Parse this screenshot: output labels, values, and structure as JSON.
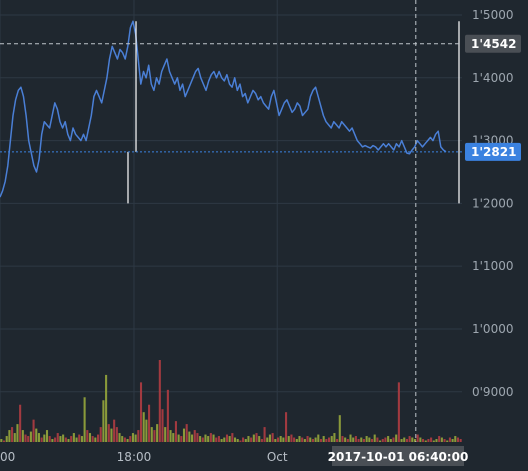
{
  "chart_data": {
    "type": "line",
    "y_unit": "price",
    "ylim": [
      0.82,
      1.5
    ],
    "y_ticks": [
      {
        "value": 1.5,
        "label": "1'5000"
      },
      {
        "value": 1.4,
        "label": "1'4000"
      },
      {
        "value": 1.3,
        "label": "1'3000"
      },
      {
        "value": 1.2,
        "label": "1'2000"
      },
      {
        "value": 1.1,
        "label": "1'1000"
      },
      {
        "value": 1.0,
        "label": "1'0000"
      },
      {
        "value": 0.9,
        "label": "0'9000"
      }
    ],
    "x_ticks": [
      {
        "pos": 0.0,
        "label": "00"
      },
      {
        "pos": 0.29,
        "label": "18:00"
      },
      {
        "pos": 0.6,
        "label": "Oct"
      }
    ],
    "crosshair": {
      "x_label": "2017-10-01 06:40:00",
      "x_pos": 0.9,
      "y_value": 1.4542,
      "y_label": "1'4542"
    },
    "last_price": {
      "value": 1.2821,
      "label": "1'2821"
    },
    "grid": true,
    "colors": {
      "line": "#4a7fd6",
      "last_tag": "#3b82e0",
      "crosshair_tag": "#4a4f55",
      "volume_up": "#8a9a3a",
      "volume_down": "#a23a40"
    },
    "series": [
      {
        "values": [
          1.21,
          1.22,
          1.235,
          1.26,
          1.3,
          1.34,
          1.365,
          1.38,
          1.385,
          1.37,
          1.34,
          1.3,
          1.28,
          1.26,
          1.25,
          1.27,
          1.31,
          1.33,
          1.325,
          1.32,
          1.34,
          1.36,
          1.35,
          1.33,
          1.32,
          1.33,
          1.31,
          1.3,
          1.32,
          1.31,
          1.305,
          1.3,
          1.31,
          1.3,
          1.32,
          1.34,
          1.37,
          1.38,
          1.37,
          1.36,
          1.38,
          1.4,
          1.43,
          1.45,
          1.44,
          1.43,
          1.445,
          1.44,
          1.43,
          1.45,
          1.48,
          1.49,
          1.47,
          1.43,
          1.39,
          1.41,
          1.4,
          1.42,
          1.39,
          1.38,
          1.4,
          1.39,
          1.41,
          1.42,
          1.43,
          1.41,
          1.4,
          1.39,
          1.4,
          1.38,
          1.39,
          1.37,
          1.38,
          1.39,
          1.4,
          1.41,
          1.415,
          1.4,
          1.39,
          1.38,
          1.395,
          1.405,
          1.41,
          1.4,
          1.41,
          1.4,
          1.395,
          1.405,
          1.39,
          1.385,
          1.4,
          1.38,
          1.39,
          1.37,
          1.375,
          1.36,
          1.37,
          1.38,
          1.375,
          1.365,
          1.37,
          1.36,
          1.355,
          1.35,
          1.37,
          1.38,
          1.36,
          1.34,
          1.35,
          1.36,
          1.365,
          1.355,
          1.345,
          1.35,
          1.36,
          1.355,
          1.34,
          1.345,
          1.35,
          1.37,
          1.38,
          1.385,
          1.37,
          1.355,
          1.34,
          1.33,
          1.325,
          1.32,
          1.33,
          1.325,
          1.32,
          1.33,
          1.325,
          1.32,
          1.315,
          1.32,
          1.31,
          1.3,
          1.295,
          1.29,
          1.292,
          1.29,
          1.288,
          1.292,
          1.29,
          1.285,
          1.29,
          1.295,
          1.29,
          1.295,
          1.29,
          1.285,
          1.295,
          1.29,
          1.3,
          1.29,
          1.28,
          1.279,
          1.285,
          1.29,
          1.3,
          1.295,
          1.29,
          1.295,
          1.3,
          1.305,
          1.3,
          1.31,
          1.315,
          1.29,
          1.285,
          1.2821
        ]
      }
    ],
    "volume": {
      "values": [
        2,
        1,
        4,
        8,
        10,
        6,
        12,
        25,
        8,
        5,
        4,
        7,
        15,
        9,
        6,
        3,
        5,
        8,
        4,
        2,
        3,
        6,
        4,
        5,
        3,
        2,
        4,
        6,
        3,
        5,
        4,
        30,
        8,
        6,
        4,
        3,
        5,
        10,
        28,
        45,
        12,
        9,
        15,
        10,
        6,
        4,
        3,
        2,
        4,
        6,
        5,
        8,
        40,
        20,
        15,
        25,
        10,
        8,
        12,
        55,
        22,
        10,
        35,
        8,
        6,
        14,
        5,
        4,
        9,
        12,
        7,
        5,
        8,
        6,
        4,
        3,
        5,
        4,
        6,
        5,
        3,
        4,
        2,
        3,
        5,
        4,
        6,
        3,
        2,
        1,
        3,
        2,
        4,
        3,
        5,
        6,
        4,
        2,
        10,
        3,
        5,
        6,
        2,
        3,
        4,
        3,
        20,
        4,
        5,
        3,
        2,
        4,
        3,
        2,
        4,
        3,
        2,
        3,
        5,
        2,
        4,
        2,
        3,
        4,
        6,
        2,
        18,
        4,
        3,
        2,
        5,
        3,
        4,
        2,
        3,
        2,
        4,
        3,
        2,
        5,
        3,
        1,
        2,
        3,
        4,
        2,
        3,
        5,
        40,
        2,
        3,
        2,
        4,
        3,
        2,
        5,
        3,
        2,
        1,
        2,
        3,
        1,
        2,
        4,
        3,
        2,
        1,
        3,
        2,
        4,
        3,
        2
      ],
      "direction": [
        1,
        0,
        1,
        1,
        0,
        1,
        1,
        0,
        1,
        0,
        0,
        1,
        0,
        1,
        1,
        0,
        1,
        1,
        0,
        1,
        0,
        0,
        1,
        1,
        0,
        1,
        0,
        1,
        1,
        0,
        1,
        1,
        0,
        1,
        0,
        1,
        0,
        0,
        1,
        1,
        0,
        1,
        0,
        0,
        1,
        1,
        0,
        1,
        0,
        1,
        1,
        0,
        0,
        1,
        1,
        0,
        1,
        0,
        1,
        0,
        0,
        1,
        0,
        1,
        1,
        0,
        1,
        0,
        1,
        0,
        1,
        1,
        0,
        0,
        1,
        0,
        1,
        1,
        0,
        1,
        0,
        0,
        1,
        1,
        0,
        1,
        0,
        1,
        1,
        0,
        0,
        1,
        1,
        0,
        1,
        0,
        1,
        0,
        0,
        1,
        1,
        0,
        1,
        0,
        1,
        1,
        0,
        1,
        0,
        0,
        1,
        1,
        0,
        1,
        0,
        1,
        0,
        1,
        1,
        0,
        1,
        0,
        0,
        1,
        1,
        0,
        1,
        0,
        1,
        0,
        1,
        1,
        0,
        0,
        1,
        0,
        1,
        1,
        0,
        1,
        0,
        1,
        0,
        0,
        1,
        1,
        0,
        1,
        0,
        1,
        1,
        0,
        0,
        1,
        1,
        0,
        1,
        0,
        1,
        0,
        0,
        1,
        1,
        0,
        1,
        0,
        1,
        0,
        1,
        1,
        0,
        0
      ]
    }
  }
}
